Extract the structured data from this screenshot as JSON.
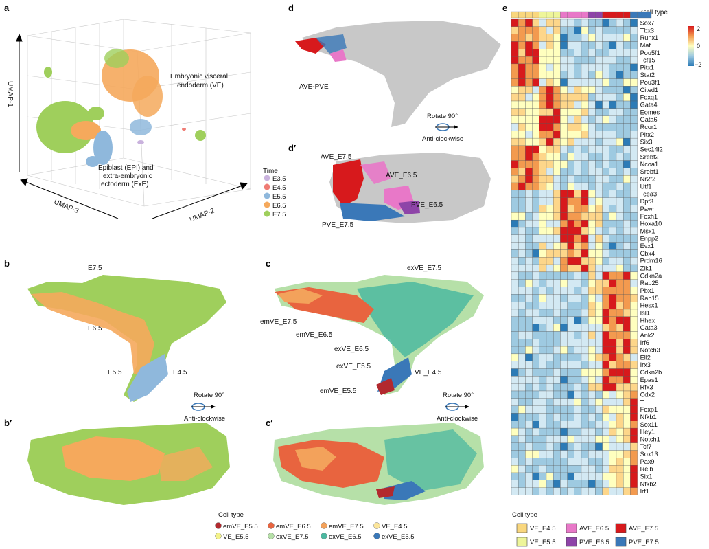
{
  "panels": {
    "a": "a",
    "b": "b",
    "b_prime": "b′",
    "c": "c",
    "c_prime": "c′",
    "d": "d",
    "d_prime": "d′",
    "e": "e"
  },
  "panel_a": {
    "axis_umap1": "UMAP-1",
    "axis_umap2": "UMAP-2",
    "axis_umap3": "UMAP-3",
    "annotation_ve_line1": "Embryonic visceral",
    "annotation_ve_line2": "endoderm (VE)",
    "annotation_epi_line1": "Epiblast (EPI) and",
    "annotation_epi_line2": "extra-embryonic",
    "annotation_epi_line3": "ectoderm (ExE)",
    "legend_title": "Time",
    "legend": [
      {
        "label": "E3.5",
        "color": "#c9b2dd"
      },
      {
        "label": "E4.5",
        "color": "#ef7b74"
      },
      {
        "label": "E5.5",
        "color": "#8fb8dc"
      },
      {
        "label": "E6.5",
        "color": "#f5a95c"
      },
      {
        "label": "E7.5",
        "color": "#9fcf5c"
      }
    ]
  },
  "panel_b": {
    "labels": [
      "E7.5",
      "E6.5",
      "E5.5",
      "E4.5"
    ],
    "rotate": "Rotate 90°",
    "direction": "Anti-clockwise"
  },
  "panel_c": {
    "labels": [
      "exVE_E7.5",
      "emVE_E7.5",
      "emVE_E6.5",
      "exVE_E6.5",
      "exVE_E5.5",
      "VE_E4.5",
      "emVE_E5.5"
    ],
    "rotate": "Rotate 90°",
    "direction": "Anti-clockwise"
  },
  "panel_d": {
    "label": "AVE-PVE",
    "rotate": "Rotate 90°",
    "direction": "Anti-clockwise"
  },
  "panel_d_prime": {
    "labels": [
      "AVE_E7.5",
      "AVE_E6.5",
      "PVE_E6.5",
      "PVE_E7.5"
    ]
  },
  "celltype_legend": {
    "title": "Cell type",
    "items": [
      {
        "label": "emVE_E5.5",
        "color": "#b2292e"
      },
      {
        "label": "emVE_E6.5",
        "color": "#e8643f"
      },
      {
        "label": "emVE_E7.5",
        "color": "#f3a25b"
      },
      {
        "label": "VE_E4.5",
        "color": "#fbe59a"
      },
      {
        "label": "VE_E5.5",
        "color": "#f3f28a"
      },
      {
        "label": "exVE_E7.5",
        "color": "#b6e0a8"
      },
      {
        "label": "exVE_E6.5",
        "color": "#4cb8a0"
      },
      {
        "label": "exVE_E5.5",
        "color": "#3a78b8"
      }
    ]
  },
  "heatmap": {
    "top_label": "Cell type",
    "scale_ticks": [
      "2",
      "0",
      "−2"
    ],
    "genes": [
      "Sox7",
      "Tbx3",
      "Runx1",
      "Maf",
      "Pou5f1",
      "Tcf15",
      "Pitx1",
      "Stat2",
      "Pou3f1",
      "Cited1",
      "Foxq1",
      "Gata4",
      "Eomes",
      "Gata6",
      "Rcor1",
      "Pitx2",
      "Six3",
      "Sec14l2",
      "Srebf2",
      "Ncoa1",
      "Srebf1",
      "Nr2f2",
      "Utf1",
      "Tcea3",
      "Dpf3",
      "Pawr",
      "Foxh1",
      "Hoxa10",
      "Msx1",
      "Enpp2",
      "Evx1",
      "Cbx4",
      "Prdm16",
      "Zik1",
      "Cdkn2a",
      "Rab25",
      "Pbx1",
      "Rab15",
      "Hesx1",
      "Isl1",
      "Hhex",
      "Gata3",
      "Ank2",
      "Irf6",
      "Notch3",
      "Ell2",
      "Irx3",
      "Cdkn2b",
      "Epas1",
      "Rfx3",
      "Cdx2",
      "T",
      "Foxp1",
      "Nfkb1",
      "Sox11",
      "Hey1",
      "Notch1",
      "Tcf7",
      "Sox13",
      "Pax9",
      "Relb",
      "Six1",
      "Nfkb2",
      "Irf1"
    ],
    "legend_title": "Cell type",
    "legend": [
      {
        "label": "VE_E4.5",
        "color": "#f9d77e"
      },
      {
        "label": "AVE_E6.5",
        "color": "#e878c8"
      },
      {
        "label": "AVE_E7.5",
        "color": "#d7191c"
      },
      {
        "label": "VE_E5.5",
        "color": "#eef59a"
      },
      {
        "label": "PVE_E6.5",
        "color": "#8e44a8"
      },
      {
        "label": "PVE_E7.5",
        "color": "#3a78b8"
      }
    ]
  }
}
